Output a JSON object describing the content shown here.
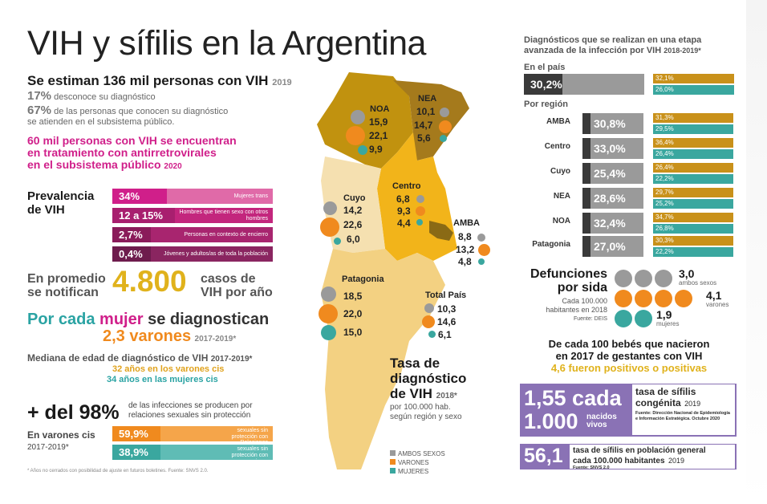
{
  "title": "VIH y sífilis en la Argentina",
  "estimate": {
    "main": "Se estiman 136 mil personas con VIH",
    "year": "2019"
  },
  "unaware": {
    "pct": "17%",
    "text": "desconoce su diagnóstico"
  },
  "public_sector": {
    "pct": "67%",
    "text1": "de las personas que conocen su diagnóstico",
    "text2": "se atienden en el subsistema público."
  },
  "treatment": {
    "l1": "60 mil personas con VIH se encuentran",
    "l2": "en tratamiento con antirretrovirales",
    "l3": "en el subsistema público",
    "year": "2020"
  },
  "prevalence": {
    "label1": "Prevalencia",
    "label2": "de VIH",
    "bars": [
      {
        "value": "34%",
        "desc": "Mujeres trans",
        "fraction": 0.34
      },
      {
        "value": "12 a 15%",
        "desc": "Hombres que tienen sexo con otros hombres",
        "fraction": 0.135
      },
      {
        "value": "2,7%",
        "desc": "Personas en contexto de encierro",
        "fraction": 0.027
      },
      {
        "value": "0,4%",
        "desc": "Jóvenes y adultos/as de toda la población",
        "fraction": 0.004
      }
    ]
  },
  "notified": {
    "l1": "En promedio",
    "l2": "se notifican",
    "value": "4.800",
    "r1": "casos de",
    "r2": "VIH por año"
  },
  "ratio": {
    "l1a": "Por cada",
    "l1b": "mujer",
    "l1c": "se diagnostican",
    "value": "2,3 varones",
    "years": "2017-2019*"
  },
  "median": {
    "title": "Mediana de edad de diagnóstico de VIH",
    "years": "2017-2019*",
    "men": "32 años en los varones cis",
    "women": "34 años en las mujeres cis"
  },
  "sexual": {
    "value": "+ del 98%",
    "text1": "de las infecciones se producen por",
    "text2": "relaciones sexuales sin protección"
  },
  "cis_men": {
    "l1": "En varones cis",
    "l2": "2017-2019*"
  },
  "cis_bars": [
    {
      "value": "59,9%",
      "desc": "Relaciones sexuales sin protección con varones"
    },
    {
      "value": "38,9%",
      "desc": "Relaciones sexuales sin protección con mujeres"
    }
  ],
  "footnote": "* Años no cerrados con posibilidad de ajuste en futuros boletines. Fuente: SNVS 2.0.",
  "map": {
    "regions": [
      {
        "name": "NOA",
        "values": [
          "15,9",
          "22,1",
          "9,9"
        ]
      },
      {
        "name": "NEA",
        "values": [
          "10,1",
          "14,7",
          "5,6"
        ]
      },
      {
        "name": "Centro",
        "values": [
          "6,8",
          "9,3",
          "4,4"
        ]
      },
      {
        "name": "Cuyo",
        "values": [
          "14,2",
          "22,6",
          "6,0"
        ]
      },
      {
        "name": "AMBA",
        "values": [
          "8,8",
          "13,2",
          "4,8"
        ]
      },
      {
        "name": "Patagonia",
        "values": [
          "18,5",
          "22,0",
          "15,0"
        ]
      },
      {
        "name": "Total País",
        "values": [
          "10,3",
          "14,6",
          "6,1"
        ]
      }
    ],
    "rate_title": [
      "Tasa de",
      "diagnóstico",
      "de VIH"
    ],
    "rate_year": "2018*",
    "rate_sub1": "por 100.000 hab.",
    "rate_sub2": "según región y sexo",
    "legend": [
      "AMBOS SEXOS",
      "VARONES",
      "MUJERES"
    ],
    "colors": {
      "both": "#9a9a9a",
      "men": "#f08a1e",
      "women": "#3aa79f"
    }
  },
  "late_diag": {
    "title1": "Diagnósticos que se realizan en una etapa",
    "title2": "avanzada de la infección por VIH",
    "years": "2018-2019*",
    "country_label": "En el país",
    "country": {
      "value": "30,2%",
      "men": "32,1%",
      "women": "26,0%"
    },
    "region_label": "Por región",
    "regions": [
      {
        "name": "AMBA",
        "value": "30,8%",
        "men": "31,3%",
        "women": "29,5%"
      },
      {
        "name": "Centro",
        "value": "33,0%",
        "men": "36,4%",
        "women": "26,4%"
      },
      {
        "name": "Cuyo",
        "value": "25,4%",
        "men": "26,4%",
        "women": "22,2%"
      },
      {
        "name": "NEA",
        "value": "28,6%",
        "men": "29,7%",
        "women": "25,2%"
      },
      {
        "name": "NOA",
        "value": "32,4%",
        "men": "34,7%",
        "women": "26,8%"
      },
      {
        "name": "Patagonia",
        "value": "27,0%",
        "men": "30,3%",
        "women": "22,2%"
      }
    ]
  },
  "deaths": {
    "t1": "Defunciones",
    "t2": "por sida",
    "s1": "Cada 100.000",
    "s2": "habitantes en 2018",
    "source": "Fuente: DEIS",
    "both": "3,0",
    "both_label": "ambos sexos",
    "men": "4,1",
    "men_label": "varones",
    "women": "1,9",
    "women_label": "mujeres"
  },
  "babies": {
    "l1": "De cada 100 bebés que nacieron",
    "l2": "en 2017 de gestantes con VIH",
    "l3": "4,6 fueron positivos o positivas"
  },
  "congenital": {
    "v1": "1,55 cada",
    "v2": "1.000",
    "v2b": "nacidos vivos",
    "title1": "tasa de sífilis",
    "title2": "congénita",
    "year": "2019",
    "src": "Fuente: Dirección Nacional de Epidemiología e Información Estratégica. Octubre 2020"
  },
  "general_syph": {
    "value": "56,1",
    "t1": "tasa de sífilis en población general",
    "t2": "cada 100.000 habitantes",
    "year": "2019",
    "src": "Fuente: SNVS 2.0"
  }
}
